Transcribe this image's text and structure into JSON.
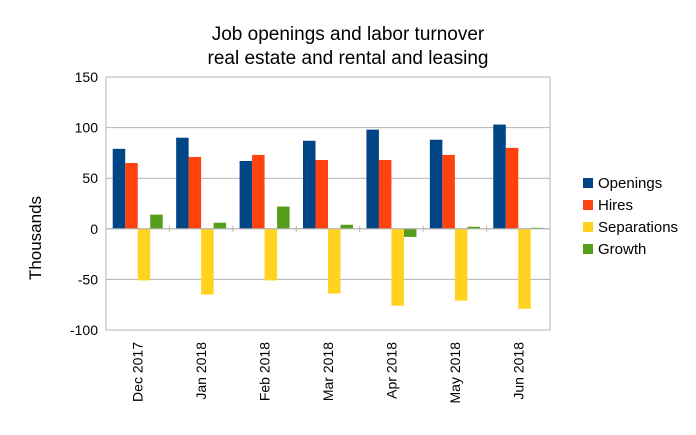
{
  "chart_data": {
    "type": "bar",
    "title": [
      "Job openings and labor turnover",
      "real estate and rental and leasing"
    ],
    "xlabel": "",
    "ylabel": "Thousands",
    "ylim": [
      -100,
      150
    ],
    "yticks": [
      150,
      100,
      50,
      0,
      -50,
      -100
    ],
    "ytick_labels": [
      "150",
      "100",
      "50",
      "0",
      "-50",
      "-100"
    ],
    "grid": true,
    "legend_position": "right",
    "categories": [
      "Dec 2017",
      "Jan 2018",
      "Feb 2018",
      "Mar 2018",
      "Apr 2018",
      "May 2018",
      "Jun 2018"
    ],
    "series": [
      {
        "name": "Openings",
        "color": "#004586",
        "values": [
          79,
          90,
          67,
          87,
          98,
          88,
          103
        ]
      },
      {
        "name": "Hires",
        "color": "#ff420e",
        "values": [
          65,
          71,
          73,
          68,
          68,
          73,
          80
        ]
      },
      {
        "name": "Separations",
        "color": "#ffd320",
        "values": [
          -51,
          -65,
          -51,
          -64,
          -76,
          -71,
          -79
        ]
      },
      {
        "name": "Growth",
        "color": "#579d1c",
        "values": [
          14,
          6,
          22,
          4,
          -8,
          2,
          1
        ]
      }
    ]
  }
}
